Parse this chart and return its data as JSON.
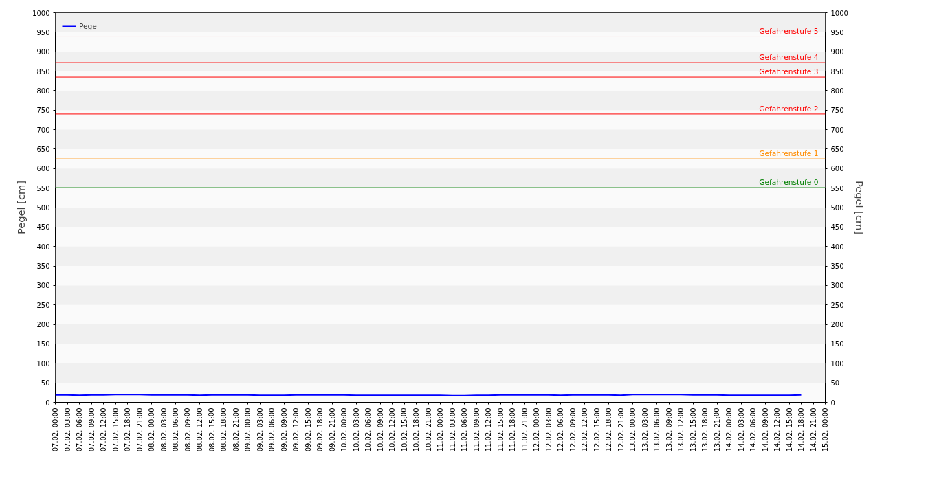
{
  "chart_data": {
    "type": "line",
    "ylabel": "Pegel [cm]",
    "y2label": "Pegel [cm]",
    "categories": [
      "07.02. 00:00",
      "07.02. 03:00",
      "07.02. 06:00",
      "07.02. 09:00",
      "07.02. 12:00",
      "07.02. 15:00",
      "07.02. 18:00",
      "07.02. 21:00",
      "08.02. 00:00",
      "08.02. 03:00",
      "08.02. 06:00",
      "08.02. 09:00",
      "08.02. 12:00",
      "08.02. 15:00",
      "08.02. 18:00",
      "08.02. 21:00",
      "09.02. 00:00",
      "09.02. 03:00",
      "09.02. 06:00",
      "09.02. 09:00",
      "09.02. 12:00",
      "09.02. 15:00",
      "09.02. 18:00",
      "09.02. 21:00",
      "10.02. 00:00",
      "10.02. 03:00",
      "10.02. 06:00",
      "10.02. 09:00",
      "10.02. 12:00",
      "10.02. 15:00",
      "10.02. 18:00",
      "10.02. 21:00",
      "11.02. 00:00",
      "11.02. 03:00",
      "11.02. 06:00",
      "11.02. 09:00",
      "11.02. 12:00",
      "11.02. 15:00",
      "11.02. 18:00",
      "11.02. 21:00",
      "12.02. 00:00",
      "12.02. 03:00",
      "12.02. 06:00",
      "12.02. 09:00",
      "12.02. 12:00",
      "12.02. 15:00",
      "12.02. 18:00",
      "12.02. 21:00",
      "13.02. 00:00",
      "13.02. 03:00",
      "13.02. 06:00",
      "13.02. 09:00",
      "13.02. 12:00",
      "13.02. 15:00",
      "13.02. 18:00",
      "13.02. 21:00",
      "14.02. 00:00",
      "14.02. 03:00",
      "14.02. 06:00",
      "14.02. 09:00",
      "14.02. 12:00",
      "14.02. 15:00",
      "14.02. 18:00",
      "14.02. 21:00",
      "15.02. 00:00"
    ],
    "series": [
      {
        "name": "Pegel",
        "color": "#0000ff",
        "values": [
          19,
          19,
          18,
          19,
          19,
          20,
          20,
          20,
          19,
          19,
          19,
          19,
          18,
          19,
          19,
          19,
          19,
          18,
          18,
          18,
          19,
          19,
          19,
          19,
          19,
          18,
          18,
          18,
          18,
          18,
          18,
          18,
          18,
          17,
          17,
          18,
          18,
          19,
          19,
          19,
          19,
          19,
          18,
          19,
          19,
          19,
          19,
          18,
          20,
          20,
          20,
          20,
          20,
          19,
          19,
          19,
          18,
          18,
          18,
          18,
          18,
          18,
          19,
          null,
          null
        ]
      }
    ],
    "ylim": [
      0,
      1000
    ],
    "yticks": [
      0,
      50,
      100,
      150,
      200,
      250,
      300,
      350,
      400,
      450,
      500,
      550,
      600,
      650,
      700,
      750,
      800,
      850,
      900,
      950,
      1000
    ],
    "y2lim": [
      0,
      1000
    ],
    "y2ticks": [
      0,
      50,
      100,
      150,
      200,
      250,
      300,
      350,
      400,
      450,
      500,
      550,
      600,
      650,
      700,
      750,
      800,
      850,
      900,
      950,
      1000
    ],
    "ref_lines": [
      {
        "axis": "y",
        "value": 940,
        "label": "Gefahrenstufe 5",
        "color": "#ff0000"
      },
      {
        "axis": "y",
        "value": 872,
        "label": "Gefahrenstufe 4",
        "color": "#ff0000"
      },
      {
        "axis": "y",
        "value": 835,
        "label": "Gefahrenstufe 3",
        "color": "#ff0000"
      },
      {
        "axis": "y",
        "value": 740,
        "label": "Gefahrenstufe 2",
        "color": "#ff0000"
      },
      {
        "axis": "y",
        "value": 625,
        "label": "Gefahrenstufe 1",
        "color": "#ff8c00"
      },
      {
        "axis": "y",
        "value": 551,
        "label": "Gefahrenstufe 0",
        "color": "#008000"
      }
    ],
    "legend": "top left",
    "line_style": "solid"
  }
}
